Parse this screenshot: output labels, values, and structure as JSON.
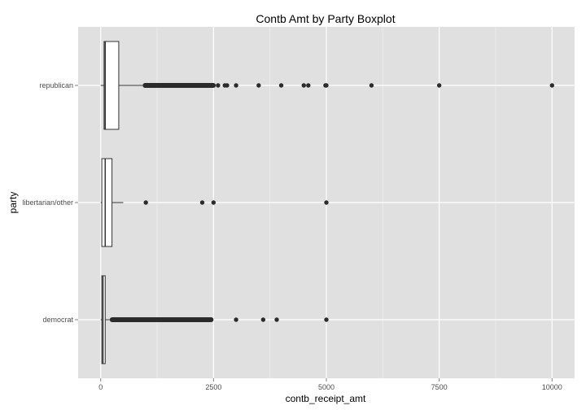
{
  "chart_data": {
    "type": "boxplot",
    "orientation": "horizontal",
    "title": "Contb Amt by Party Boxplot",
    "xlabel": "contb_receipt_amt",
    "ylabel": "party",
    "xlim": [
      -500,
      10500
    ],
    "xticks": [
      0,
      2500,
      5000,
      7500,
      10000
    ],
    "xtick_labels": [
      "0",
      "2500",
      "5000",
      "7500",
      "10000"
    ],
    "grid": true,
    "background": "#e0e0e0",
    "categories": [
      "republican",
      "libertarian/other",
      "democrat"
    ],
    "boxes": [
      {
        "category": "republican",
        "whisker_low": 0,
        "q1": 75,
        "median": 100,
        "q3": 400,
        "whisker_high": 930,
        "outlier_band": [
          930,
          2550
        ],
        "outliers": [
          2600,
          2750,
          2800,
          3000,
          3500,
          4000,
          4500,
          4600,
          4980,
          5000,
          6000,
          7500,
          10000
        ]
      },
      {
        "category": "libertarian/other",
        "whisker_low": 0,
        "q1": 25,
        "median": 100,
        "q3": 250,
        "whisker_high": 500,
        "outlier_band": null,
        "outliers": [
          1000,
          2250,
          2500,
          5000
        ]
      },
      {
        "category": "democrat",
        "whisker_low": 0,
        "q1": 25,
        "median": 50,
        "q3": 100,
        "whisker_high": 200,
        "outlier_band": [
          200,
          2500
        ],
        "outliers": [
          3000,
          3600,
          3900,
          5000
        ]
      }
    ]
  }
}
